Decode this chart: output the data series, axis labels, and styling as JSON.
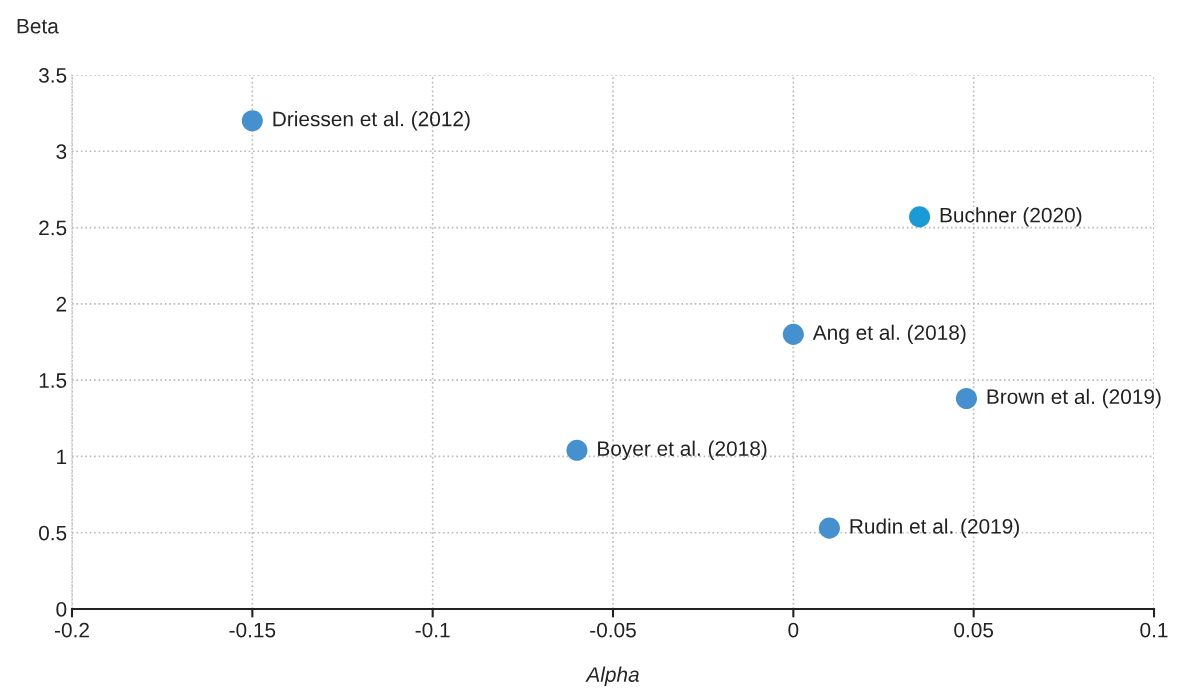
{
  "chart_data": {
    "type": "scatter",
    "xlabel": "Alpha",
    "ylabel": "Beta",
    "x": [
      -0.15,
      0.035,
      0,
      0.048,
      -0.06,
      0.01
    ],
    "values": [
      3.2,
      2.57,
      1.8,
      1.38,
      1.04,
      0.53
    ],
    "colors": [
      "#4590cf",
      "#1a9bd7",
      "#4590cf",
      "#4590cf",
      "#4590cf",
      "#4590cf"
    ],
    "xlim": [
      -0.2,
      0.1
    ],
    "xticks": [
      -0.2,
      -0.15,
      -0.1,
      -0.05,
      0,
      0.05,
      0.1
    ],
    "ylim": [
      0,
      3.5
    ],
    "yticks": [
      0,
      0.5,
      1,
      1.5,
      2,
      2.5,
      3,
      3.5
    ],
    "grid": true,
    "marker": "circle",
    "annotations": [
      {
        "text": "Driessen et al. (2012)",
        "x": -0.15,
        "y": 3.2
      },
      {
        "text": "Buchner (2020)",
        "x": 0.035,
        "y": 2.57
      },
      {
        "text": "Ang et al. (2018)",
        "x": 0,
        "y": 1.8
      },
      {
        "text": "Brown et al. (2019)",
        "x": 0.048,
        "y": 1.38
      },
      {
        "text": "Boyer et al. (2018)",
        "x": -0.06,
        "y": 1.04
      },
      {
        "text": "Rudin et al. (2019)",
        "x": 0.01,
        "y": 0.53
      }
    ]
  }
}
